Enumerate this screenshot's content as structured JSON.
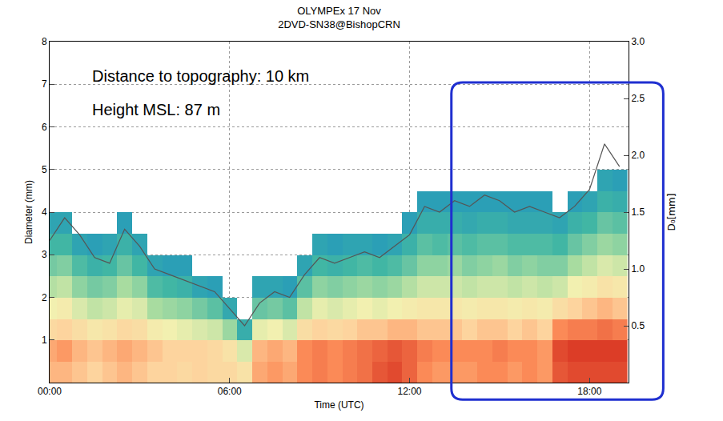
{
  "chart_data": {
    "type": "heatmap",
    "title": "OLYMPEx 17 Nov",
    "subtitle": "2DVD-SN38@BishopCRN",
    "x_label": "Time (UTC)",
    "y_label": "Diameter (mm)",
    "y2_label": "D₀[mm]",
    "annotations": [
      "Distance to topography: 10 km",
      "Height MSL: 87 m"
    ],
    "x": [
      0,
      0.5,
      1,
      1.5,
      2,
      2.5,
      3,
      3.5,
      4,
      4.5,
      5,
      5.5,
      6,
      6.5,
      7,
      7.5,
      8,
      8.5,
      9,
      9.5,
      10,
      10.5,
      11,
      11.5,
      12,
      12.5,
      13,
      13.5,
      14,
      14.5,
      15,
      15.5,
      16,
      16.5,
      17,
      17.5,
      18,
      18.5,
      19
    ],
    "xlim": [
      0,
      19.3
    ],
    "xticks": [
      {
        "value": 0,
        "label": "00:00"
      },
      {
        "value": 6,
        "label": "06:00"
      },
      {
        "value": 12,
        "label": "12:00"
      },
      {
        "value": 18,
        "label": "18:00"
      }
    ],
    "ylim": [
      0,
      8
    ],
    "yticks": [
      1,
      2,
      3,
      4,
      5,
      6,
      7,
      8
    ],
    "y2lim": [
      0,
      3
    ],
    "y2ticks": [
      0.5,
      {
        "value": 1,
        "label": "1.0"
      },
      1.5,
      {
        "value": 2,
        "label": "2.0"
      },
      2.5,
      {
        "value": 3,
        "label": "3.0"
      }
    ],
    "grid": true,
    "series": [
      {
        "type": "heatmap",
        "diameters": [
          0.25,
          0.75,
          1.25,
          1.75,
          2.25,
          2.75,
          3.25,
          3.75,
          4.25,
          4.75,
          5.25,
          5.75
        ],
        "zlim": [
          0,
          4
        ],
        "cells": [
          [
            3.0,
            3.1,
            2.7,
            2.2,
            1.7,
            1.2,
            0.8,
            0.4,
            null,
            null,
            null,
            null
          ],
          [
            3.0,
            3.2,
            2.8,
            2.3,
            1.8,
            1.3,
            0.8,
            0.4,
            null,
            null,
            null,
            null
          ],
          [
            2.9,
            3.0,
            2.6,
            2.0,
            1.4,
            0.9,
            0.4,
            null,
            null,
            null,
            null,
            null
          ],
          [
            2.8,
            2.9,
            2.4,
            1.8,
            1.2,
            0.7,
            0.3,
            null,
            null,
            null,
            null,
            null
          ],
          [
            2.9,
            3.0,
            2.5,
            1.9,
            1.3,
            0.8,
            0.4,
            null,
            null,
            null,
            null,
            null
          ],
          [
            3.0,
            3.1,
            2.7,
            2.1,
            1.6,
            1.1,
            0.7,
            0.3,
            null,
            null,
            null,
            null
          ],
          [
            2.9,
            3.0,
            2.6,
            2.0,
            1.4,
            0.8,
            0.4,
            null,
            null,
            null,
            null,
            null
          ],
          [
            2.8,
            2.9,
            2.3,
            1.6,
            0.9,
            0.4,
            null,
            null,
            null,
            null,
            null,
            null
          ],
          [
            2.8,
            2.8,
            2.2,
            1.5,
            0.8,
            0.3,
            null,
            null,
            null,
            null,
            null,
            null
          ],
          [
            2.7,
            2.8,
            2.1,
            1.4,
            0.7,
            0.3,
            null,
            null,
            null,
            null,
            null,
            null
          ],
          [
            2.8,
            2.8,
            2.0,
            1.2,
            0.4,
            null,
            null,
            null,
            null,
            null,
            null,
            null
          ],
          [
            2.7,
            2.7,
            1.9,
            1.0,
            0.3,
            null,
            null,
            null,
            null,
            null,
            null,
            null
          ],
          [
            2.7,
            2.5,
            1.5,
            0.5,
            null,
            null,
            null,
            null,
            null,
            null,
            null,
            null
          ],
          [
            2.5,
            2.0,
            0.6,
            null,
            null,
            null,
            null,
            null,
            null,
            null,
            null,
            null
          ],
          [
            3.1,
            3.0,
            2.1,
            1.1,
            0.4,
            null,
            null,
            null,
            null,
            null,
            null,
            null
          ],
          [
            3.2,
            3.1,
            2.2,
            1.2,
            0.4,
            null,
            null,
            null,
            null,
            null,
            null,
            null
          ],
          [
            3.1,
            3.0,
            2.0,
            1.0,
            0.3,
            null,
            null,
            null,
            null,
            null,
            null,
            null
          ],
          [
            3.3,
            3.3,
            2.6,
            1.8,
            1.0,
            0.4,
            null,
            null,
            null,
            null,
            null,
            null
          ],
          [
            3.4,
            3.4,
            2.8,
            2.1,
            1.4,
            0.8,
            0.4,
            null,
            null,
            null,
            null,
            null
          ],
          [
            3.3,
            3.3,
            2.7,
            2.0,
            1.3,
            0.7,
            0.3,
            null,
            null,
            null,
            null,
            null
          ],
          [
            3.4,
            3.4,
            2.8,
            2.1,
            1.4,
            0.8,
            0.4,
            null,
            null,
            null,
            null,
            null
          ],
          [
            3.5,
            3.5,
            2.9,
            2.2,
            1.5,
            0.9,
            0.4,
            null,
            null,
            null,
            null,
            null
          ],
          [
            3.7,
            3.6,
            2.9,
            2.1,
            1.4,
            0.8,
            0.3,
            null,
            null,
            null,
            null,
            null
          ],
          [
            3.8,
            3.7,
            3.0,
            2.2,
            1.5,
            0.9,
            0.4,
            null,
            null,
            null,
            null,
            null
          ],
          [
            3.6,
            3.6,
            3.0,
            2.3,
            1.7,
            1.1,
            0.7,
            0.3,
            null,
            null,
            null,
            null
          ],
          [
            3.3,
            3.4,
            2.9,
            2.4,
            1.9,
            1.4,
            1.0,
            0.6,
            0.3,
            null,
            null,
            null
          ],
          [
            3.2,
            3.3,
            2.9,
            2.4,
            1.9,
            1.4,
            0.9,
            0.6,
            0.3,
            null,
            null,
            null
          ],
          [
            3.2,
            3.3,
            2.9,
            2.4,
            1.9,
            1.5,
            1.0,
            0.6,
            0.3,
            null,
            null,
            null
          ],
          [
            3.2,
            3.3,
            2.8,
            2.3,
            1.8,
            1.3,
            0.9,
            0.5,
            0.3,
            null,
            null,
            null
          ],
          [
            3.3,
            3.3,
            2.9,
            2.4,
            1.9,
            1.4,
            1.0,
            0.6,
            0.3,
            null,
            null,
            null
          ],
          [
            3.3,
            3.4,
            2.9,
            2.4,
            1.9,
            1.5,
            1.0,
            0.6,
            0.3,
            null,
            null,
            null
          ],
          [
            3.2,
            3.3,
            2.8,
            2.3,
            1.8,
            1.3,
            0.9,
            0.5,
            0.3,
            null,
            null,
            null
          ],
          [
            3.3,
            3.3,
            2.9,
            2.4,
            1.9,
            1.4,
            0.9,
            0.5,
            0.3,
            null,
            null,
            null
          ],
          [
            3.2,
            3.2,
            2.8,
            2.3,
            1.8,
            1.3,
            0.9,
            0.5,
            0.3,
            null,
            null,
            null
          ],
          [
            3.7,
            3.8,
            3.3,
            2.6,
            1.9,
            1.3,
            0.8,
            0.4,
            null,
            null,
            null,
            null
          ],
          [
            3.8,
            3.9,
            3.4,
            2.8,
            2.2,
            1.6,
            1.1,
            0.7,
            0.3,
            null,
            null,
            null
          ],
          [
            3.8,
            3.9,
            3.4,
            2.9,
            2.3,
            1.8,
            1.3,
            0.8,
            0.4,
            null,
            null,
            null
          ],
          [
            3.8,
            3.9,
            3.5,
            3.0,
            2.5,
            2.0,
            1.5,
            1.1,
            0.7,
            0.4,
            null,
            null
          ],
          [
            3.8,
            3.9,
            3.4,
            2.9,
            2.4,
            1.9,
            1.4,
            1.0,
            0.6,
            0.3,
            null,
            null
          ]
        ]
      },
      {
        "type": "line",
        "axis": "y2",
        "color": "#555555",
        "values": [
          1.25,
          1.45,
          1.3,
          1.1,
          1.05,
          1.35,
          1.2,
          1.0,
          0.95,
          0.9,
          0.85,
          0.8,
          0.65,
          0.5,
          0.7,
          0.8,
          0.75,
          0.95,
          1.1,
          1.05,
          1.1,
          1.15,
          1.1,
          1.2,
          1.3,
          1.55,
          1.5,
          1.6,
          1.55,
          1.65,
          1.6,
          1.5,
          1.55,
          1.5,
          1.45,
          1.55,
          1.7,
          2.1,
          1.9
        ]
      }
    ]
  }
}
